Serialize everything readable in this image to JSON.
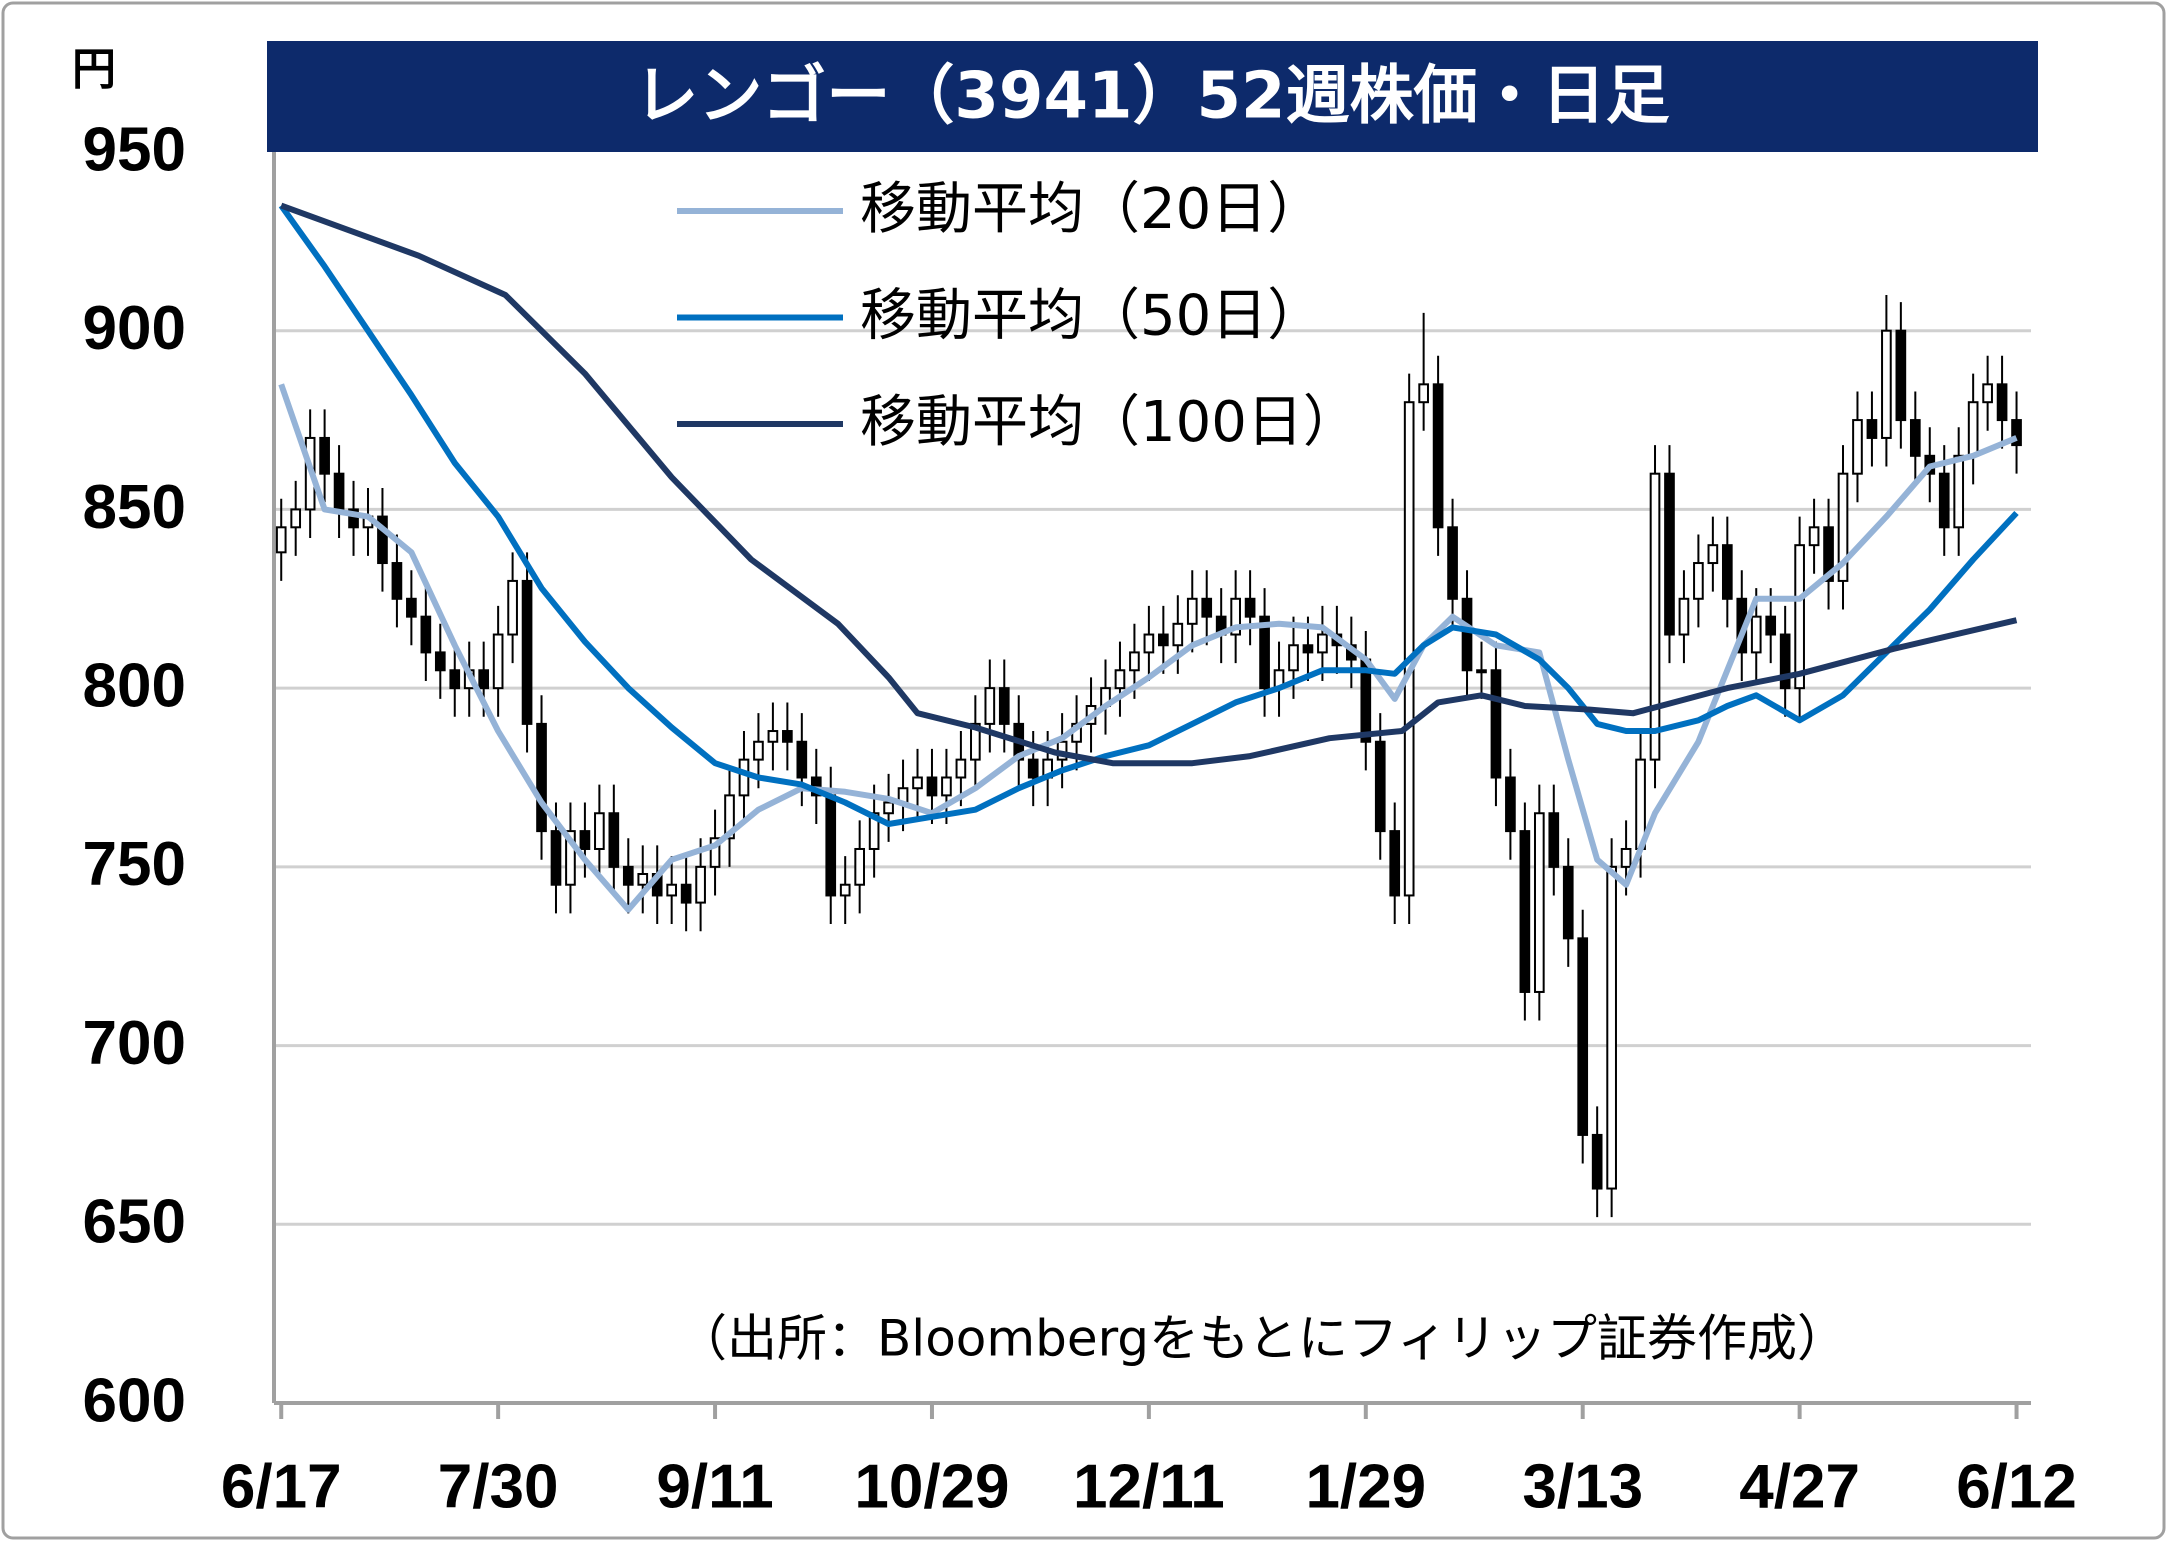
{
  "chart_data": {
    "type": "candlestick",
    "title": "レンゴー（3941）52週株価・日足",
    "y_unit": "円",
    "note": "（出所：Bloombergをもとにフィリップ証券作成）",
    "up_color": "#ffffff",
    "down_color": "#000000",
    "grid": true,
    "legend": "upper-left",
    "xlim": [
      -1,
      242
    ],
    "xticks": [
      {
        "value": 0,
        "label": "6/17"
      },
      {
        "value": 30,
        "label": "7/30"
      },
      {
        "value": 60,
        "label": "9/11"
      },
      {
        "value": 90,
        "label": "10/29"
      },
      {
        "value": 120,
        "label": "12/11"
      },
      {
        "value": 150,
        "label": "1/29"
      },
      {
        "value": 180,
        "label": "3/13"
      },
      {
        "value": 210,
        "label": "4/27"
      },
      {
        "value": 240,
        "label": "6/12"
      }
    ],
    "ylim": [
      600,
      950
    ],
    "yticks": [
      600,
      650,
      700,
      750,
      800,
      850,
      900,
      950
    ],
    "x": [
      0,
      2,
      4,
      6,
      8,
      10,
      12,
      14,
      16,
      18,
      20,
      22,
      24,
      26,
      28,
      30,
      32,
      34,
      36,
      38,
      40,
      42,
      44,
      46,
      48,
      50,
      52,
      54,
      56,
      58,
      60,
      62,
      64,
      66,
      68,
      70,
      72,
      74,
      76,
      78,
      80,
      82,
      84,
      86,
      88,
      90,
      92,
      94,
      96,
      98,
      100,
      102,
      104,
      106,
      108,
      110,
      112,
      114,
      116,
      118,
      120,
      122,
      124,
      126,
      128,
      130,
      132,
      134,
      136,
      138,
      140,
      142,
      144,
      146,
      148,
      150,
      152,
      154,
      156,
      158,
      160,
      162,
      164,
      166,
      168,
      170,
      172,
      174,
      176,
      178,
      180,
      182,
      184,
      186,
      188,
      190,
      192,
      194,
      196,
      198,
      200,
      202,
      204,
      206,
      208,
      210,
      212,
      214,
      216,
      218,
      220,
      222,
      224,
      226,
      228,
      230,
      232,
      234,
      236,
      238,
      240
    ],
    "open": [
      838,
      845,
      850,
      870,
      860,
      850,
      845,
      848,
      835,
      825,
      820,
      810,
      805,
      800,
      805,
      800,
      815,
      830,
      790,
      760,
      745,
      760,
      755,
      765,
      750,
      745,
      748,
      742,
      745,
      740,
      750,
      758,
      770,
      780,
      785,
      788,
      785,
      775,
      770,
      742,
      745,
      755,
      765,
      768,
      772,
      775,
      770,
      775,
      780,
      790,
      800,
      790,
      780,
      775,
      780,
      785,
      790,
      795,
      800,
      805,
      810,
      815,
      812,
      818,
      825,
      820,
      815,
      825,
      820,
      800,
      805,
      812,
      810,
      815,
      812,
      808,
      785,
      760,
      742,
      880,
      885,
      845,
      825,
      805,
      805,
      775,
      760,
      715,
      765,
      750,
      730,
      675,
      660,
      750,
      755,
      780,
      860,
      815,
      825,
      835,
      840,
      825,
      810,
      820,
      815,
      800,
      840,
      845,
      830,
      860,
      875,
      870,
      900,
      875,
      865,
      860,
      845,
      865,
      880,
      885,
      875
    ],
    "high": [
      853,
      858,
      878,
      878,
      868,
      858,
      856,
      856,
      843,
      833,
      828,
      818,
      813,
      813,
      813,
      823,
      838,
      838,
      798,
      768,
      768,
      768,
      773,
      773,
      758,
      756,
      756,
      753,
      753,
      758,
      766,
      778,
      788,
      793,
      796,
      796,
      793,
      783,
      778,
      753,
      763,
      773,
      776,
      780,
      783,
      783,
      783,
      788,
      798,
      808,
      808,
      798,
      788,
      788,
      793,
      798,
      803,
      808,
      813,
      818,
      823,
      823,
      826,
      833,
      833,
      828,
      833,
      833,
      828,
      813,
      820,
      820,
      823,
      823,
      820,
      816,
      793,
      768,
      888,
      905,
      893,
      853,
      833,
      813,
      813,
      783,
      768,
      773,
      773,
      758,
      738,
      683,
      758,
      763,
      788,
      868,
      868,
      833,
      843,
      848,
      848,
      833,
      828,
      828,
      823,
      848,
      853,
      853,
      868,
      883,
      883,
      910,
      908,
      883,
      873,
      868,
      873,
      888,
      893,
      893,
      883
    ],
    "low": [
      830,
      837,
      842,
      852,
      842,
      837,
      837,
      827,
      817,
      812,
      802,
      797,
      792,
      792,
      792,
      792,
      807,
      782,
      752,
      737,
      737,
      747,
      747,
      742,
      737,
      737,
      734,
      734,
      732,
      732,
      742,
      750,
      762,
      772,
      777,
      777,
      767,
      762,
      734,
      734,
      737,
      747,
      757,
      760,
      764,
      762,
      762,
      767,
      772,
      782,
      782,
      772,
      767,
      767,
      772,
      777,
      782,
      787,
      792,
      797,
      802,
      804,
      804,
      810,
      812,
      807,
      807,
      812,
      792,
      792,
      797,
      802,
      802,
      804,
      800,
      777,
      752,
      734,
      734,
      872,
      837,
      817,
      797,
      797,
      767,
      752,
      707,
      707,
      742,
      722,
      667,
      652,
      652,
      742,
      747,
      772,
      807,
      807,
      817,
      827,
      817,
      802,
      802,
      807,
      792,
      792,
      832,
      822,
      822,
      852,
      862,
      862,
      867,
      857,
      852,
      837,
      837,
      857,
      872,
      867,
      860
    ],
    "close": [
      845,
      850,
      870,
      860,
      850,
      845,
      848,
      835,
      825,
      820,
      810,
      805,
      800,
      805,
      800,
      815,
      830,
      790,
      760,
      745,
      760,
      755,
      765,
      750,
      745,
      748,
      742,
      745,
      740,
      750,
      758,
      770,
      780,
      785,
      788,
      785,
      775,
      770,
      742,
      745,
      755,
      765,
      768,
      772,
      775,
      770,
      775,
      780,
      790,
      800,
      790,
      780,
      775,
      780,
      785,
      790,
      795,
      800,
      805,
      810,
      815,
      812,
      818,
      825,
      820,
      815,
      825,
      820,
      800,
      805,
      812,
      810,
      815,
      812,
      808,
      785,
      760,
      742,
      880,
      885,
      845,
      825,
      805,
      805,
      775,
      760,
      715,
      765,
      750,
      730,
      675,
      660,
      750,
      755,
      780,
      860,
      815,
      825,
      835,
      840,
      825,
      810,
      820,
      815,
      800,
      840,
      845,
      830,
      860,
      875,
      870,
      900,
      875,
      865,
      860,
      845,
      865,
      880,
      885,
      875,
      868
    ],
    "series": [
      {
        "name": "移動平均（20日）",
        "color": "#95b3d7",
        "x": [
          0,
          6,
          12,
          18,
          24,
          30,
          36,
          42,
          48,
          54,
          60,
          66,
          72,
          78,
          84,
          90,
          96,
          102,
          108,
          114,
          120,
          126,
          132,
          138,
          144,
          150,
          154,
          158,
          162,
          168,
          174,
          178,
          182,
          186,
          190,
          196,
          200,
          204,
          210,
          216,
          222,
          228,
          234,
          240
        ],
        "values": [
          885,
          850,
          848,
          838,
          812,
          788,
          768,
          752,
          738,
          752,
          756,
          766,
          772,
          771,
          769,
          765,
          772,
          781,
          786,
          795,
          803,
          812,
          817,
          818,
          817,
          808,
          797,
          812,
          820,
          812,
          810,
          780,
          752,
          745,
          765,
          785,
          805,
          825,
          825,
          835,
          848,
          862,
          865,
          870
        ]
      },
      {
        "name": "移動平均（50日）",
        "color": "#0070c0",
        "x": [
          0,
          6,
          12,
          18,
          24,
          30,
          36,
          42,
          48,
          54,
          60,
          66,
          72,
          78,
          84,
          90,
          96,
          102,
          108,
          114,
          120,
          126,
          132,
          138,
          144,
          150,
          154,
          158,
          162,
          168,
          174,
          178,
          182,
          186,
          190,
          196,
          200,
          204,
          210,
          216,
          222,
          228,
          234,
          240
        ],
        "values": [
          935,
          918,
          900,
          882,
          863,
          848,
          828,
          813,
          800,
          789,
          779,
          775,
          773,
          768,
          762,
          764,
          766,
          772,
          777,
          781,
          784,
          790,
          796,
          800,
          805,
          805,
          804,
          812,
          817,
          815,
          808,
          800,
          790,
          788,
          788,
          791,
          795,
          798,
          791,
          798,
          810,
          822,
          836,
          849
        ]
      },
      {
        "name": "移動平均（100日）",
        "color": "#1f3864",
        "x": [
          0,
          19,
          31,
          42,
          54,
          65,
          77,
          84,
          88,
          96,
          107,
          115,
          126,
          134,
          145,
          155,
          160,
          166,
          172,
          181,
          187,
          200,
          210,
          223,
          240
        ],
        "values": [
          935,
          921,
          910,
          888,
          859,
          836,
          818,
          803,
          793,
          789,
          782,
          779,
          779,
          781,
          786,
          788,
          796,
          798,
          795,
          794,
          793,
          800,
          804,
          811,
          819
        ]
      }
    ]
  }
}
